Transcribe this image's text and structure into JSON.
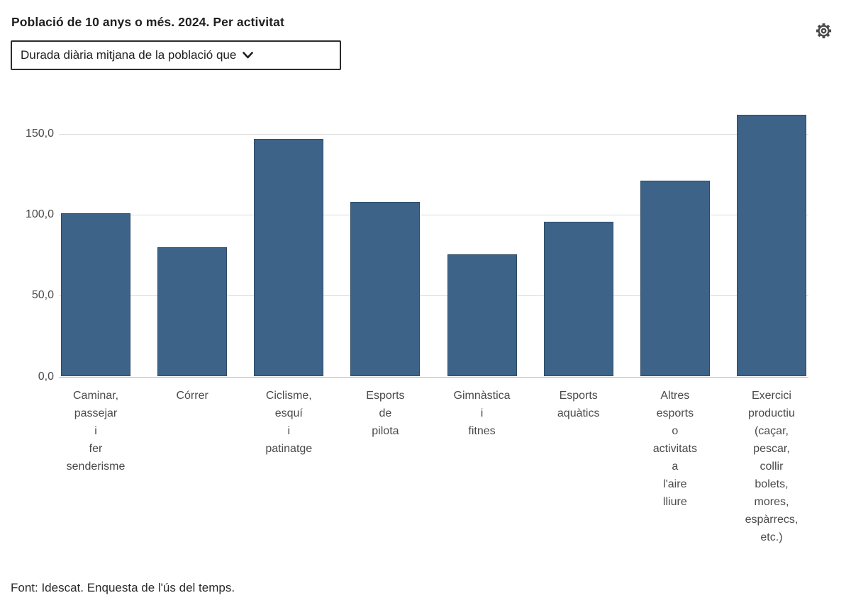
{
  "header": {
    "title": "Població de 10 anys o més. 2024. Per activitat"
  },
  "controls": {
    "dimension_select": {
      "value": "Durada diària mitjana de la població que"
    }
  },
  "chart_data": {
    "type": "bar",
    "title": "Població de 10 anys o més. 2024. Per activitat",
    "categories": [
      "Caminar, passejar i fer senderisme",
      "Córrer",
      "Ciclisme, esquí i patinatge",
      "Esports de pilota",
      "Gimnàstica i fitnes",
      "Esports aquàtics",
      "Altres esports o activitats a l'aire lliure",
      "Exercici productiu (caçar, pescar, collir bolets, mores, espàrrecs, etc.)"
    ],
    "values": [
      101,
      80,
      147,
      108,
      75.5,
      95.5,
      121,
      162
    ],
    "xlabel": "",
    "ylabel": "",
    "ylim": [
      0,
      170
    ],
    "yticks": [
      0,
      50,
      100,
      150
    ],
    "ytick_labels": [
      "0,0",
      "50,0",
      "100,0",
      "150,0"
    ],
    "grid": true,
    "legend": false,
    "bar_color": "#3e6388",
    "bar_border_color": "#2c4a67",
    "gridline_color": "#d9d9d9"
  },
  "footer": {
    "source": "Font: Idescat. Enquesta de l'ús del temps."
  },
  "icons": {
    "settings": "gear-icon",
    "select_chevron": "chevron-down-icon"
  }
}
